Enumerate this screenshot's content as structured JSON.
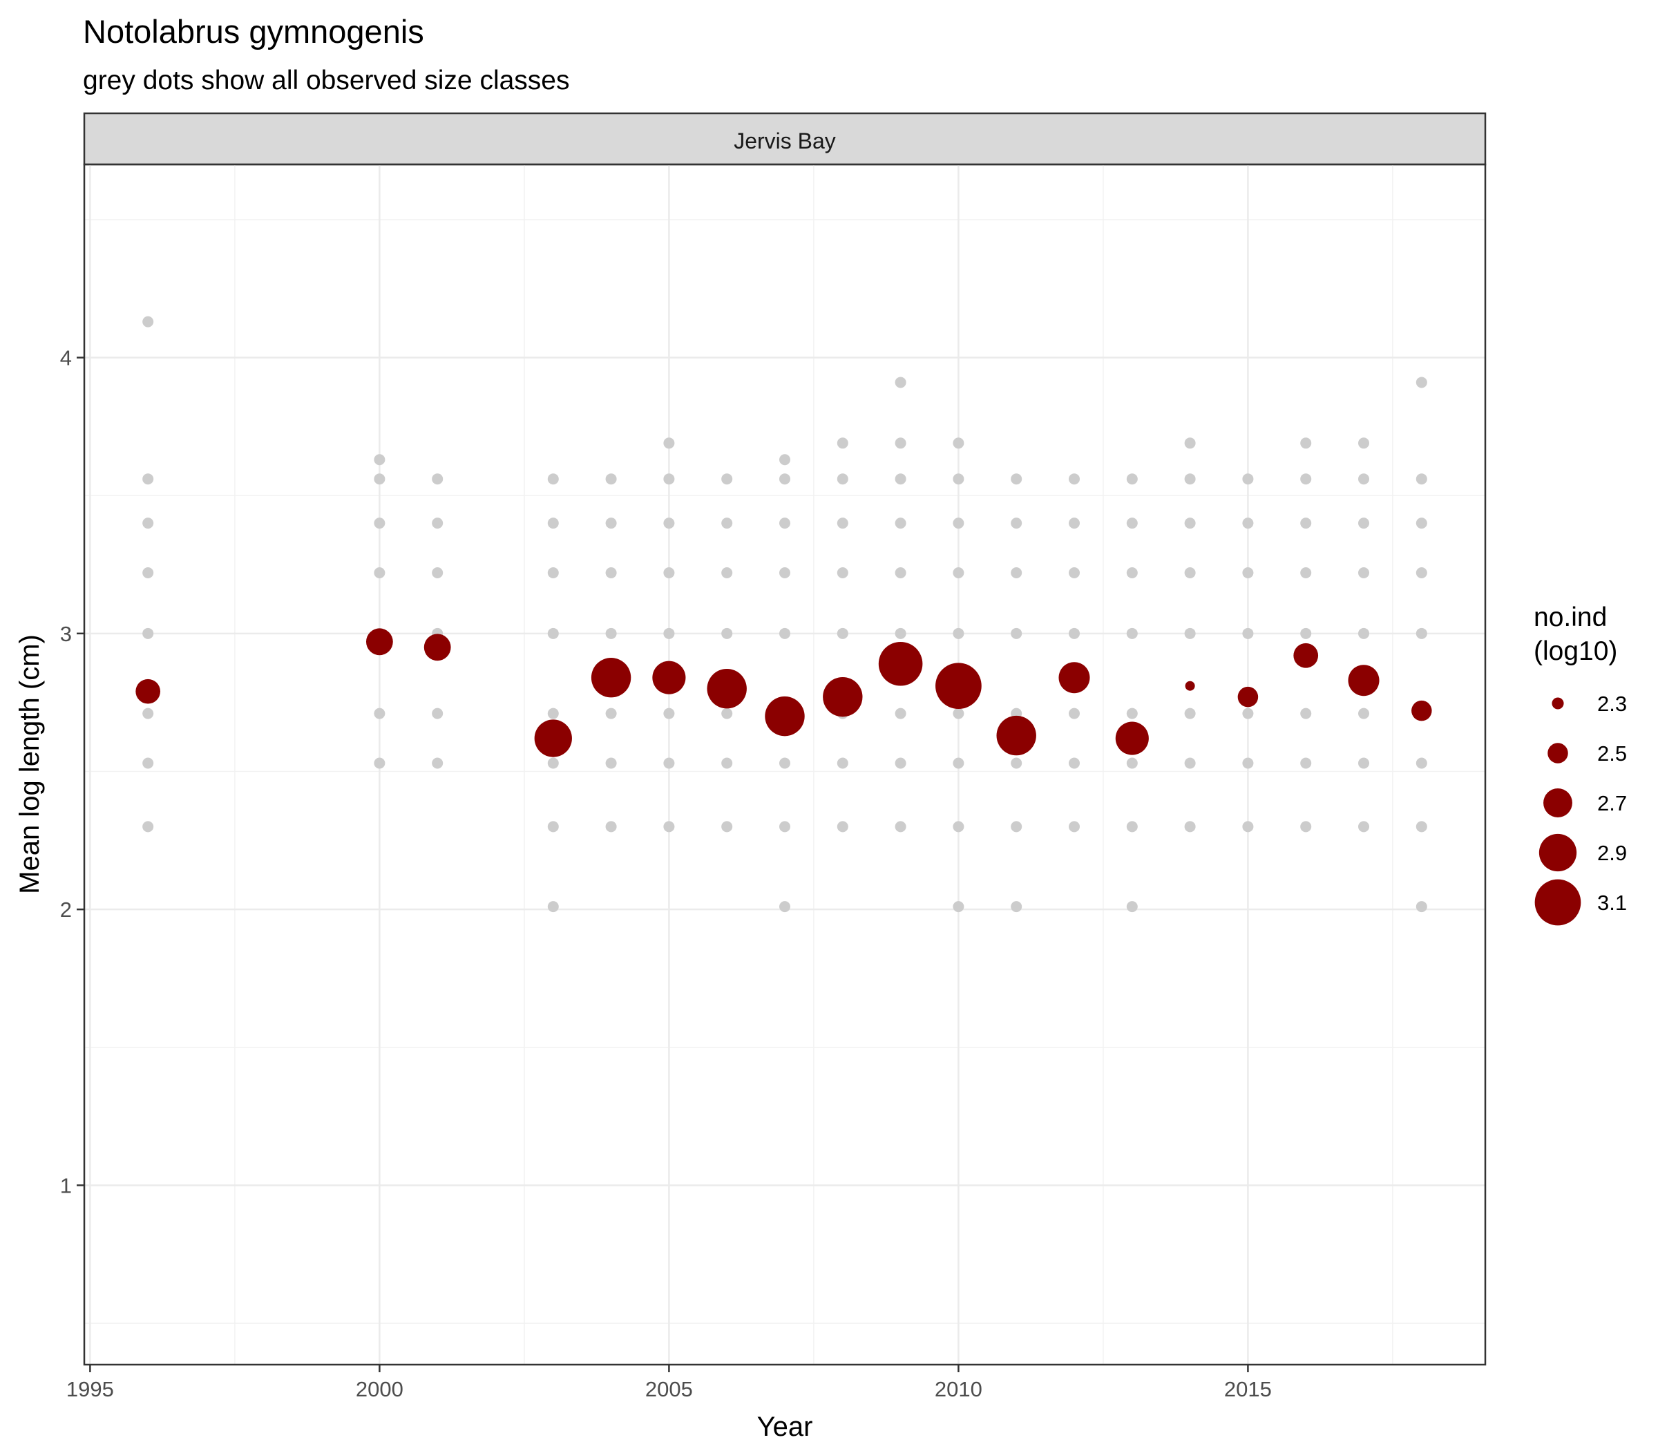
{
  "chart_data": {
    "type": "scatter",
    "title": "Notolabrus gymnogenis",
    "subtitle": "grey dots show all observed size classes",
    "facet": "Jervis Bay",
    "xlabel": "Year",
    "ylabel": "Mean log length (cm)",
    "xlim": [
      1994.9,
      2019.1
    ],
    "ylim": [
      0.35,
      4.7
    ],
    "x_ticks": [
      1995,
      2000,
      2005,
      2010,
      2015
    ],
    "x_tick_labels": [
      "1995",
      "2000",
      "2005",
      "2010",
      "2015"
    ],
    "y_ticks": [
      1,
      2,
      3,
      4
    ],
    "y_tick_labels": [
      "1",
      "2",
      "3",
      "4"
    ],
    "grid": true,
    "legend_position": "right",
    "legend": {
      "title_line1": "no.ind",
      "title_line2": "(log10)",
      "entries": [
        {
          "label": "2.3",
          "value": 2.3
        },
        {
          "label": "2.5",
          "value": 2.5
        },
        {
          "label": "2.7",
          "value": 2.7
        },
        {
          "label": "2.9",
          "value": 2.9
        },
        {
          "label": "3.1",
          "value": 3.1
        }
      ]
    },
    "colors": {
      "observed": "#cccccc",
      "mean": "#8b0000"
    },
    "observed_size_classes": [
      {
        "year": 1996,
        "lengths": [
          4.13,
          3.56,
          3.4,
          3.22,
          3.0,
          2.71,
          2.53,
          2.3
        ]
      },
      {
        "year": 2000,
        "lengths": [
          3.63,
          3.56,
          3.4,
          3.22,
          3.0,
          2.71,
          2.53
        ]
      },
      {
        "year": 2001,
        "lengths": [
          3.56,
          3.4,
          3.22,
          3.0,
          2.71,
          2.53
        ]
      },
      {
        "year": 2003,
        "lengths": [
          3.56,
          3.4,
          3.22,
          3.0,
          2.71,
          2.53,
          2.3,
          2.01
        ]
      },
      {
        "year": 2004,
        "lengths": [
          3.56,
          3.4,
          3.22,
          3.0,
          2.71,
          2.53,
          2.3
        ]
      },
      {
        "year": 2005,
        "lengths": [
          3.69,
          3.56,
          3.4,
          3.22,
          3.0,
          2.71,
          2.53,
          2.3
        ]
      },
      {
        "year": 2006,
        "lengths": [
          3.56,
          3.4,
          3.22,
          3.0,
          2.71,
          2.53,
          2.3
        ]
      },
      {
        "year": 2007,
        "lengths": [
          3.63,
          3.56,
          3.4,
          3.22,
          3.0,
          2.71,
          2.53,
          2.3,
          2.01
        ]
      },
      {
        "year": 2008,
        "lengths": [
          3.69,
          3.56,
          3.4,
          3.22,
          3.0,
          2.71,
          2.53,
          2.3
        ]
      },
      {
        "year": 2009,
        "lengths": [
          3.91,
          3.69,
          3.56,
          3.4,
          3.22,
          3.0,
          2.71,
          2.53,
          2.3
        ]
      },
      {
        "year": 2010,
        "lengths": [
          3.69,
          3.56,
          3.4,
          3.22,
          3.0,
          2.71,
          2.53,
          2.3,
          2.01
        ]
      },
      {
        "year": 2011,
        "lengths": [
          3.56,
          3.4,
          3.22,
          3.0,
          2.71,
          2.53,
          2.3,
          2.01
        ]
      },
      {
        "year": 2012,
        "lengths": [
          3.56,
          3.4,
          3.22,
          3.0,
          2.71,
          2.53,
          2.3
        ]
      },
      {
        "year": 2013,
        "lengths": [
          3.56,
          3.4,
          3.22,
          3.0,
          2.71,
          2.53,
          2.3,
          2.01
        ]
      },
      {
        "year": 2014,
        "lengths": [
          3.69,
          3.56,
          3.4,
          3.22,
          3.0,
          2.71,
          2.53,
          2.3
        ]
      },
      {
        "year": 2015,
        "lengths": [
          3.56,
          3.4,
          3.22,
          3.0,
          2.71,
          2.53,
          2.3
        ]
      },
      {
        "year": 2016,
        "lengths": [
          3.69,
          3.56,
          3.4,
          3.22,
          3.0,
          2.71,
          2.53,
          2.3
        ]
      },
      {
        "year": 2017,
        "lengths": [
          3.69,
          3.56,
          3.4,
          3.22,
          3.0,
          2.71,
          2.53,
          2.3
        ]
      },
      {
        "year": 2018,
        "lengths": [
          3.91,
          3.56,
          3.4,
          3.22,
          3.0,
          2.71,
          2.53,
          2.3,
          2.01
        ]
      }
    ],
    "mean_points": [
      {
        "year": 1996,
        "mean_log_length": 2.79,
        "no_ind_log10": 2.6
      },
      {
        "year": 2000,
        "mean_log_length": 2.97,
        "no_ind_log10": 2.65
      },
      {
        "year": 2001,
        "mean_log_length": 2.95,
        "no_ind_log10": 2.65
      },
      {
        "year": 2003,
        "mean_log_length": 2.62,
        "no_ind_log10": 2.9
      },
      {
        "year": 2004,
        "mean_log_length": 2.84,
        "no_ind_log10": 2.95
      },
      {
        "year": 2005,
        "mean_log_length": 2.84,
        "no_ind_log10": 2.8
      },
      {
        "year": 2006,
        "mean_log_length": 2.8,
        "no_ind_log10": 2.95
      },
      {
        "year": 2007,
        "mean_log_length": 2.7,
        "no_ind_log10": 2.95
      },
      {
        "year": 2008,
        "mean_log_length": 2.77,
        "no_ind_log10": 2.95
      },
      {
        "year": 2009,
        "mean_log_length": 2.89,
        "no_ind_log10": 3.05
      },
      {
        "year": 2010,
        "mean_log_length": 2.81,
        "no_ind_log10": 3.1
      },
      {
        "year": 2011,
        "mean_log_length": 2.63,
        "no_ind_log10": 2.95
      },
      {
        "year": 2012,
        "mean_log_length": 2.84,
        "no_ind_log10": 2.75
      },
      {
        "year": 2013,
        "mean_log_length": 2.62,
        "no_ind_log10": 2.8
      },
      {
        "year": 2014,
        "mean_log_length": 2.81,
        "no_ind_log10": 2.25
      },
      {
        "year": 2015,
        "mean_log_length": 2.77,
        "no_ind_log10": 2.5
      },
      {
        "year": 2016,
        "mean_log_length": 2.92,
        "no_ind_log10": 2.6
      },
      {
        "year": 2017,
        "mean_log_length": 2.83,
        "no_ind_log10": 2.75
      },
      {
        "year": 2018,
        "mean_log_length": 2.72,
        "no_ind_log10": 2.5
      }
    ]
  }
}
